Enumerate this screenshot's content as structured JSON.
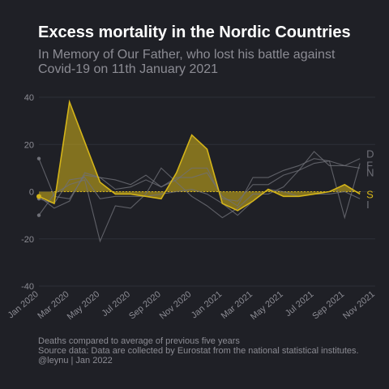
{
  "chart_data": {
    "type": "line",
    "title": "Excess mortality in the Nordic Countries",
    "subtitle": [
      "In Memory of Our Father, who lost his battle against",
      "Covid-19  on 11th January 2021"
    ],
    "caption": [
      "Deaths compared to average of previous five years",
      "Source data: Data are collected by Eurostat from the national statistical institutes.",
      "@leynu | Jan 2022"
    ],
    "ylim": [
      -40,
      40
    ],
    "yticks": [
      -40,
      -20,
      0,
      20,
      40
    ],
    "xlim": [
      "2020-01",
      "2021-11"
    ],
    "x": [
      "2020-01",
      "2020-02",
      "2020-03",
      "2020-04",
      "2020-05",
      "2020-06",
      "2020-07",
      "2020-08",
      "2020-09",
      "2020-10",
      "2020-11",
      "2020-12",
      "2021-01",
      "2021-02",
      "2021-03",
      "2021-04",
      "2021-05",
      "2021-06",
      "2021-07",
      "2021-08",
      "2021-09",
      "2021-10"
    ],
    "xtick_labels": [
      "Jan 2020",
      "Mar 2020",
      "May 2020",
      "Jul 2020",
      "Sep 2020",
      "Nov 2020",
      "Jan 2021",
      "Mar 2021",
      "May 2021",
      "Jul 2021",
      "Sep 2021",
      "Nov 2021"
    ],
    "xtick_values": [
      "2020-01",
      "2020-03",
      "2020-05",
      "2020-07",
      "2020-09",
      "2020-11",
      "2021-01",
      "2021-03",
      "2021-05",
      "2021-07",
      "2021-09",
      "2021-11"
    ],
    "highlight_color": "#d4b419",
    "other_color": "#6f7078",
    "series": [
      {
        "name": "D",
        "highlight": false,
        "values": [
          14,
          -2,
          -3,
          7,
          6,
          5,
          3,
          7,
          2,
          6,
          6,
          8,
          -2,
          -6,
          6,
          6,
          9,
          11,
          14,
          13,
          11,
          14
        ]
      },
      {
        "name": "F",
        "highlight": false,
        "values": [
          -10,
          -1,
          3,
          5,
          -21,
          -6,
          -7,
          -1,
          10,
          4,
          -2,
          -6,
          -11,
          -7,
          -1,
          -1,
          2,
          9,
          12,
          13,
          -11,
          12
        ]
      },
      {
        "name": "N",
        "highlight": false,
        "values": [
          -2,
          -7,
          -4,
          8,
          6,
          1,
          2,
          5,
          2,
          5,
          10,
          10,
          -3,
          -4,
          3,
          3,
          7,
          9,
          17,
          11,
          11,
          10
        ]
      },
      {
        "name": "I",
        "highlight": false,
        "values": [
          -3,
          -5,
          5,
          6,
          -3,
          -2,
          -2,
          -2,
          -1,
          0,
          1,
          -1,
          -5,
          -10,
          -4,
          1,
          0,
          -2,
          -1,
          -1,
          0,
          -3
        ]
      },
      {
        "name": "S",
        "highlight": true,
        "values": [
          -2,
          -5,
          38,
          21,
          4,
          -1,
          -1,
          -2,
          -3,
          8,
          24,
          18,
          -5,
          -8,
          -4,
          1,
          -2,
          -2,
          -1,
          0,
          3,
          -1
        ]
      }
    ]
  }
}
